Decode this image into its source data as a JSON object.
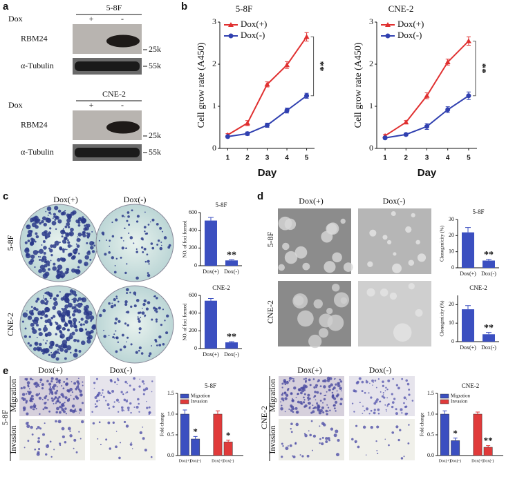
{
  "panel_labels": [
    "a",
    "b",
    "c",
    "d",
    "e"
  ],
  "blots": [
    {
      "title": "5-8F",
      "treatment_label": "Dox",
      "treatments": [
        "+",
        "-"
      ],
      "bands": [
        "RBM24",
        "α-Tubulin"
      ],
      "markers": [
        "25k",
        "55k"
      ]
    },
    {
      "title": "CNE-2",
      "treatment_label": "Dox",
      "treatments": [
        "+",
        "-"
      ],
      "bands": [
        "RBM24",
        "α-Tubulin"
      ],
      "markers": [
        "25k",
        "55k"
      ]
    }
  ],
  "micrographs": {
    "columns": [
      "Dox(+)",
      "Dox(-)"
    ],
    "rows": [
      "5-8F",
      "CNE-2"
    ],
    "assay_rows": [
      "Migration",
      "Invasion"
    ]
  },
  "chart_data": [
    {
      "type": "line",
      "title": "5-8F",
      "x_label": "Day",
      "y_label": "Cell grow rate (A450)",
      "x": [
        1,
        2,
        3,
        4,
        5
      ],
      "xlim": [
        0.6,
        5.4
      ],
      "xticks": [
        1,
        2,
        3,
        4,
        5
      ],
      "ylim": [
        0,
        3
      ],
      "yticks": [
        0,
        1,
        2,
        3
      ],
      "series": [
        {
          "name": "Dox(+)",
          "color": "#e03030",
          "marker": "triangle",
          "values": [
            0.32,
            0.6,
            1.52,
            1.98,
            2.65
          ],
          "errors": [
            0.03,
            0.06,
            0.06,
            0.08,
            0.1
          ]
        },
        {
          "name": "Dox(-)",
          "color": "#3040b0",
          "marker": "circle",
          "values": [
            0.28,
            0.35,
            0.55,
            0.9,
            1.25
          ],
          "errors": [
            0.03,
            0.04,
            0.05,
            0.06,
            0.06
          ]
        }
      ],
      "annotation": "**"
    },
    {
      "type": "line",
      "title": "CNE-2",
      "x_label": "Day",
      "y_label": "Cell grow rate (A450)",
      "x": [
        1,
        2,
        3,
        4,
        5
      ],
      "xlim": [
        0.6,
        5.4
      ],
      "xticks": [
        1,
        2,
        3,
        4,
        5
      ],
      "ylim": [
        0,
        3
      ],
      "yticks": [
        0,
        1,
        2,
        3
      ],
      "series": [
        {
          "name": "Dox(+)",
          "color": "#e03030",
          "marker": "triangle",
          "values": [
            0.3,
            0.62,
            1.25,
            2.05,
            2.55
          ],
          "errors": [
            0.03,
            0.04,
            0.07,
            0.07,
            0.1
          ]
        },
        {
          "name": "Dox(-)",
          "color": "#3040b0",
          "marker": "circle",
          "values": [
            0.25,
            0.33,
            0.52,
            0.92,
            1.25
          ],
          "errors": [
            0.03,
            0.03,
            0.07,
            0.07,
            0.09
          ]
        }
      ],
      "annotation": "**"
    },
    {
      "type": "bar",
      "title": "5-8F",
      "y_label": "NO. of foci formed",
      "categories": [
        "Dox(+)",
        "Dox(-)"
      ],
      "values": [
        510,
        60
      ],
      "errors": [
        35,
        8
      ],
      "color": "#3b4fc0",
      "ylim": [
        0,
        600
      ],
      "yticks": [
        0,
        200,
        400,
        600
      ],
      "annotation": "**"
    },
    {
      "type": "bar",
      "title": "CNE-2",
      "y_label": "NO. of foci formed",
      "categories": [
        "Dox(+)",
        "Dox(-)"
      ],
      "values": [
        540,
        70
      ],
      "errors": [
        25,
        8
      ],
      "color": "#3b4fc0",
      "ylim": [
        0,
        600
      ],
      "yticks": [
        0,
        200,
        400,
        600
      ],
      "annotation": "**"
    },
    {
      "type": "bar",
      "title": "5-8F",
      "y_label": "Clonogenicity (%)",
      "categories": [
        "Dox(+)",
        "Dox(-)"
      ],
      "values": [
        22,
        4.5
      ],
      "errors": [
        3,
        0.8
      ],
      "color": "#3b4fc0",
      "ylim": [
        0,
        30
      ],
      "yticks": [
        0,
        10,
        20,
        30
      ],
      "annotation": "**"
    },
    {
      "type": "bar",
      "title": "CNE-2",
      "y_label": "Clonogenicity (%)",
      "categories": [
        "Dox(+)",
        "Dox(-)"
      ],
      "values": [
        17.5,
        4
      ],
      "errors": [
        2,
        1
      ],
      "color": "#3b4fc0",
      "ylim": [
        0,
        25
      ],
      "yticks": [
        0,
        10,
        20
      ],
      "annotation": "**"
    },
    {
      "type": "grouped",
      "title": "5-8F",
      "y_label": "Fold change",
      "categories": [
        "Dox(+)",
        "Dox(-)"
      ],
      "ylim": [
        0,
        1.5
      ],
      "yticks": [
        {
          "value": 0,
          "label": "0.0"
        },
        {
          "value": 0.5,
          "label": "0.5"
        },
        {
          "value": 1,
          "label": "1.0"
        },
        {
          "value": 1.5,
          "label": "1.5"
        }
      ],
      "series": [
        {
          "name": "Migration",
          "color": "#3b4fc0",
          "values": [
            1,
            0.4
          ],
          "errors": [
            0.1,
            0.06
          ],
          "annotations": [
            null,
            "*"
          ]
        },
        {
          "name": "Invasion",
          "color": "#e03a3a",
          "values": [
            1,
            0.33
          ],
          "errors": [
            0.08,
            0.04
          ],
          "annotations": [
            null,
            "*"
          ]
        }
      ]
    },
    {
      "type": "grouped",
      "title": "CNE-2",
      "y_label": "Fold change",
      "categories": [
        "Dox(+)",
        "Dox(-)"
      ],
      "ylim": [
        0,
        1.5
      ],
      "yticks": [
        {
          "value": 0,
          "label": "0.0"
        },
        {
          "value": 0.5,
          "label": "0.5"
        },
        {
          "value": 1,
          "label": "1.0"
        },
        {
          "value": 1.5,
          "label": "1.5"
        }
      ],
      "series": [
        {
          "name": "Migration",
          "color": "#3b4fc0",
          "values": [
            1,
            0.36
          ],
          "errors": [
            0.08,
            0.06
          ],
          "annotations": [
            null,
            "*"
          ]
        },
        {
          "name": "Invasion",
          "color": "#e03a3a",
          "values": [
            1,
            0.2
          ],
          "errors": [
            0.05,
            0.04
          ],
          "annotations": [
            null,
            "**"
          ]
        }
      ]
    }
  ]
}
